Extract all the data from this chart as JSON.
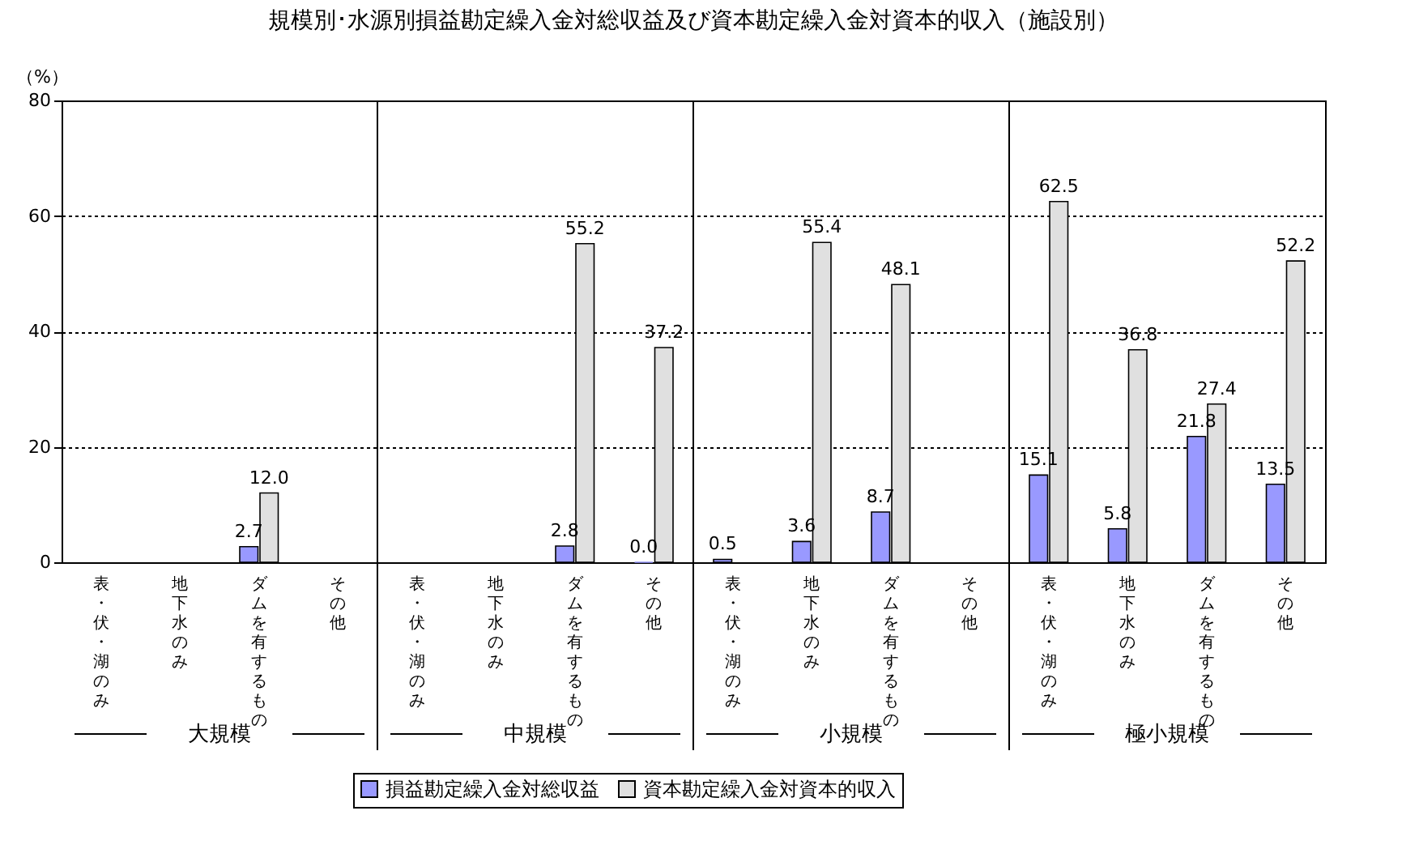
{
  "chart_data": {
    "type": "bar",
    "title": "規模別･水源別損益勘定繰入金対総収益及び資本勘定繰入金対資本的収入（施設別）",
    "ylabel": "（%）",
    "categories": [
      "表・伏・湖のみ",
      "地下水のみ",
      "ダムを有するもの",
      "その他",
      "表・伏・湖のみ",
      "地下水のみ",
      "ダムを有するもの",
      "その他",
      "表・伏・湖のみ",
      "地下水のみ",
      "ダムを有するもの",
      "その他",
      "表・伏・湖のみ",
      "地下水のみ",
      "ダムを有するもの",
      "その他"
    ],
    "annotations": [
      "大規模",
      "中規模",
      "小規模",
      "極小規模"
    ],
    "series": [
      {
        "name": "損益勘定繰入金対総収益",
        "color": "#9999ff",
        "values": [
          null,
          null,
          2.7,
          null,
          null,
          null,
          2.8,
          0.0,
          0.5,
          3.6,
          8.7,
          null,
          15.1,
          5.8,
          21.8,
          13.5
        ],
        "value_labels": [
          null,
          null,
          "2.7",
          null,
          null,
          null,
          "2.8",
          "0.0",
          "0.5",
          "3.6",
          "8.7",
          null,
          "15.1",
          "5.8",
          "21.8",
          "13.5"
        ]
      },
      {
        "name": "資本勘定繰入金対資本的収入",
        "color": "#e0e0e0",
        "values": [
          null,
          null,
          12.0,
          null,
          null,
          null,
          55.2,
          37.2,
          null,
          55.4,
          48.1,
          null,
          62.5,
          36.8,
          27.4,
          52.2
        ],
        "value_labels": [
          null,
          null,
          "12.0",
          null,
          null,
          null,
          "55.2",
          "37.2",
          null,
          "55.4",
          "48.1",
          null,
          "62.5",
          "36.8",
          "27.4",
          "52.2"
        ]
      }
    ],
    "ylim": [
      0,
      80
    ],
    "yticks": [
      0,
      20,
      40,
      60,
      80
    ],
    "grid": "y",
    "legend": "bottom"
  }
}
